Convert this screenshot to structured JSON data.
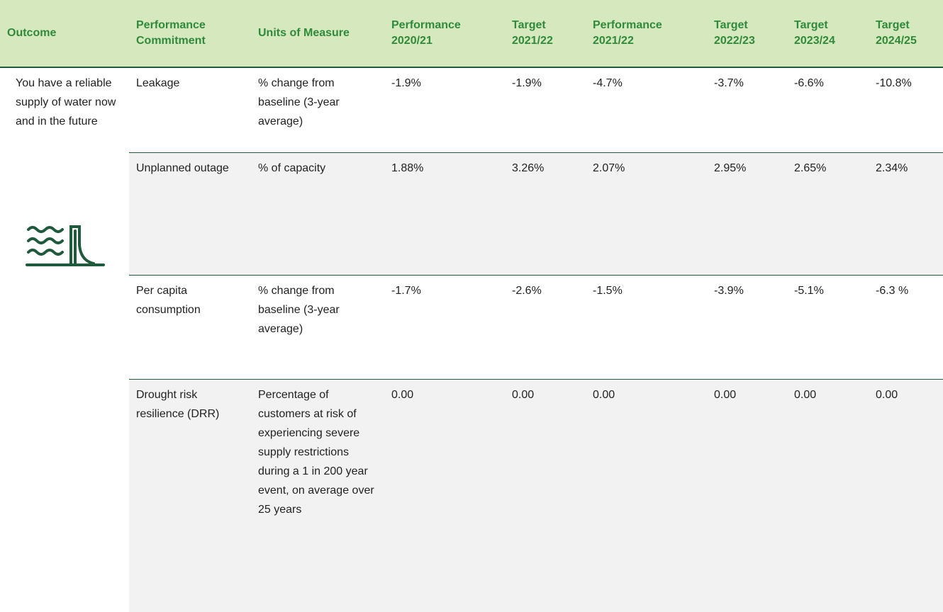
{
  "table": {
    "headers": [
      "Outcome",
      "Performance Commitment",
      "Units of Measure",
      "Performance 2020/21",
      "Target 2021/22",
      "Performance 2021/22",
      "Target 2022/23",
      "Target 2023/24",
      "Target 2024/25"
    ],
    "outcome": "You have a reliable supply of water now and in the future",
    "rows": [
      [
        "Leakage",
        "% change from baseline (3-year average)",
        "-1.9%",
        "-1.9%",
        "-4.7%",
        "-3.7%",
        "-6.6%",
        "-10.8%"
      ],
      [
        "Unplanned outage",
        "% of capacity",
        "1.88%",
        "3.26%",
        "2.07%",
        "2.95%",
        "2.65%",
        "2.34%"
      ],
      [
        "Per capita consumption",
        "% change from baseline (3-year average)",
        "-1.7%",
        "-2.6%",
        "-1.5%",
        "-3.9%",
        "-5.1%",
        "-6.3 %"
      ],
      [
        "Drought risk resilience (DRR)",
        "Percentage of customers at risk of experiencing severe supply restrictions during a 1 in 200 year event, on average over 25 years",
        "0.00",
        "0.00",
        "0.00",
        "0.00",
        "0.00",
        "0.00"
      ]
    ]
  }
}
